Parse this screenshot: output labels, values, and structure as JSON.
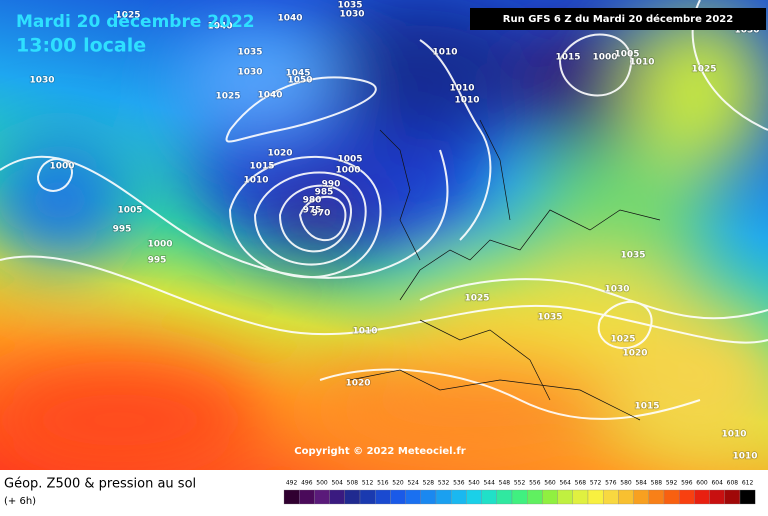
{
  "header": {
    "date": "Mardi 20 décembre 2022",
    "time": "13:00 locale",
    "run": "Run GFS 6 Z du Mardi 20 décembre 2022"
  },
  "copyright": "Copyright © 2022 Meteociel.fr",
  "footer": {
    "title": "Géop. Z500 & pression au sol",
    "lead": "(+ 6h)"
  },
  "legend": {
    "values": [
      492,
      496,
      500,
      504,
      508,
      512,
      516,
      520,
      524,
      528,
      532,
      536,
      540,
      544,
      548,
      552,
      556,
      560,
      564,
      568,
      572,
      576,
      580,
      584,
      588,
      592,
      596,
      600,
      604,
      608,
      612
    ]
  },
  "isobar_labels": [
    "1025",
    "1040",
    "1030",
    "1035",
    "1030",
    "1025",
    "1045",
    "1050",
    "1040",
    "1040",
    "1035",
    "1030",
    "1010",
    "1010",
    "1010",
    "1015",
    "1000",
    "1005",
    "1010",
    "1025",
    "1030",
    "1000",
    "1005",
    "995",
    "1000",
    "995",
    "1020",
    "1015",
    "1010",
    "1005",
    "1000",
    "990",
    "985",
    "980",
    "975",
    "970",
    "1025",
    "1035",
    "1030",
    "1035",
    "1025",
    "1020",
    "1010",
    "1020",
    "1015",
    "1010",
    "1010"
  ]
}
